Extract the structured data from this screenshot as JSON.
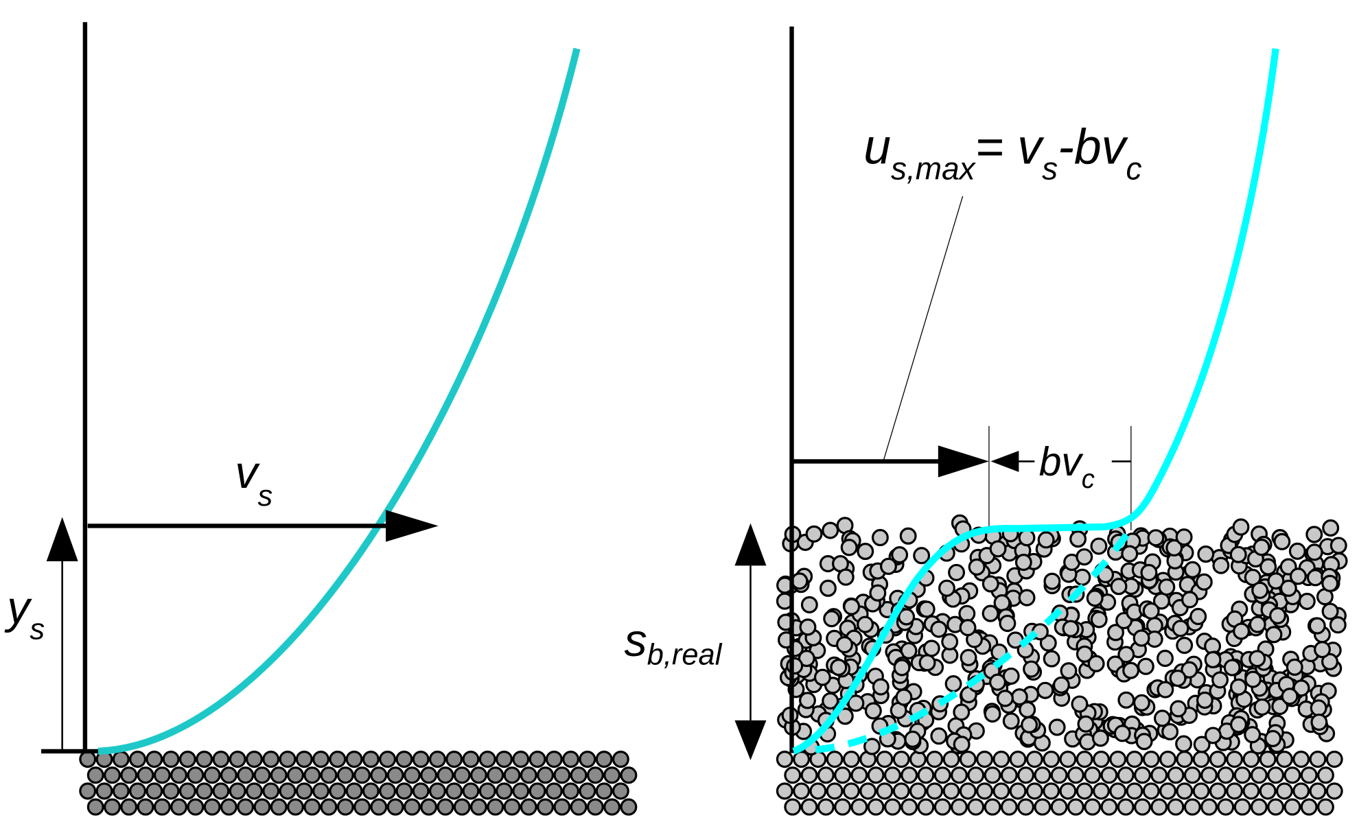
{
  "left_panel": {
    "velocity_label": {
      "main": "v",
      "sub": "s"
    },
    "height_label": {
      "main": "y",
      "sub": "s"
    }
  },
  "right_panel": {
    "equation": [
      {
        "text": "u",
        "sub": "s,max"
      },
      {
        "text": "= v",
        "sub": "s"
      },
      {
        "text": "-bv",
        "sub": "c"
      }
    ],
    "offset_label": {
      "main": "bv",
      "sub": "c"
    },
    "depth_label": {
      "main": "s",
      "sub": "b,real"
    }
  }
}
